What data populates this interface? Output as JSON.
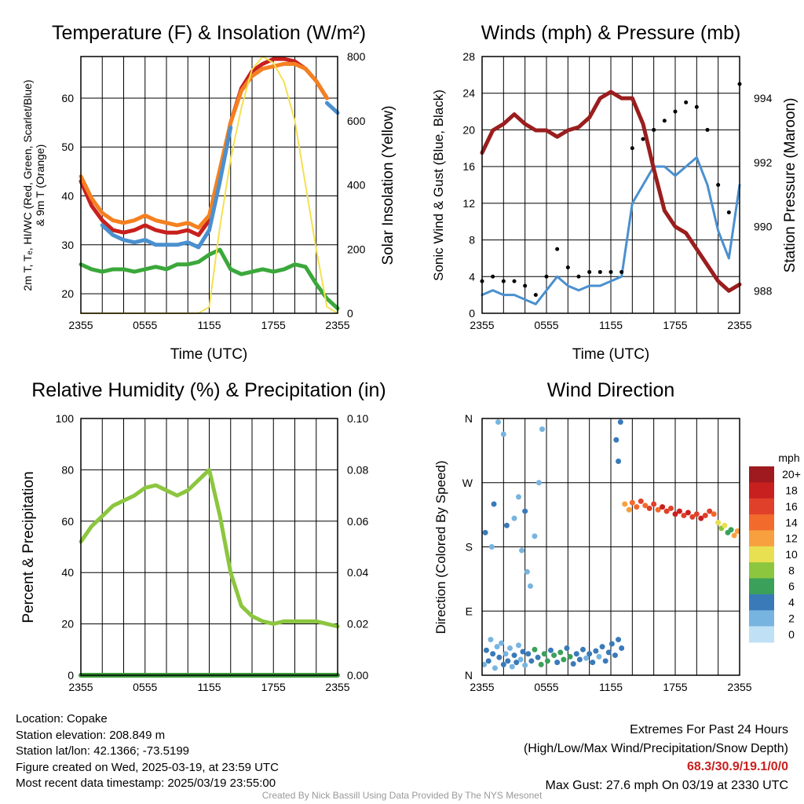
{
  "colors": {
    "red": "#c8201e",
    "orange": "#f58020",
    "blue": "#4a90cf",
    "green": "#3aa83a",
    "yellow": "#f5e050",
    "maroon": "#9a1e1e",
    "black": "#000000",
    "rh": "#8cc63f",
    "precip": "#3a9a3a",
    "credit": "#999999",
    "extremes": "#c8201e"
  },
  "chart_data": [
    {
      "type": "line",
      "title": "Temperature (F) & Insolation (W/m²)",
      "xlabel": "Time (UTC)",
      "ylabel": "2m T, Td, HI/WC (Red, Green, Scarlet/Blue) & 9m T (Orange)",
      "ylabel_line1": "2m T, Tₑ, HI/WC (Red, Green, Scarlet/Blue)",
      "ylabel_line2": "& 9m T (Orange)",
      "y2label": "Solar Insolation (Yellow)",
      "xticks": [
        "2355",
        "0555",
        "1155",
        "1755",
        "2355"
      ],
      "yticks": [
        20,
        30,
        40,
        50,
        60
      ],
      "y2ticks": [
        0,
        200,
        400,
        600,
        800
      ],
      "ylim": [
        16,
        68.5
      ],
      "y2lim": [
        0,
        800
      ],
      "grid": true,
      "x_hours": [
        0,
        1,
        2,
        3,
        4,
        5,
        6,
        7,
        8,
        9,
        10,
        11,
        12,
        13,
        14,
        15,
        16,
        17,
        18,
        19,
        20,
        21,
        22,
        23,
        24
      ],
      "series": [
        {
          "key": "temp_2m",
          "color": "red",
          "values": [
            43,
            38,
            35,
            33,
            32.5,
            33,
            34,
            33,
            32.5,
            32.5,
            33,
            32,
            35,
            45,
            55,
            62,
            65.5,
            67,
            68,
            68,
            67.5,
            66,
            63.5,
            60,
            null
          ]
        },
        {
          "key": "temp_9m",
          "color": "orange",
          "values": [
            44,
            39.5,
            36.5,
            35,
            34.5,
            35,
            36,
            35,
            34.5,
            34,
            34.5,
            33.5,
            36,
            45.5,
            55,
            61.5,
            64.5,
            66,
            66.5,
            67,
            67,
            66,
            63.5,
            60,
            null
          ]
        },
        {
          "key": "windchill",
          "color": "blue",
          "values": [
            42,
            null,
            34,
            32,
            31,
            30.5,
            31,
            30,
            30,
            30,
            30.5,
            29.5,
            33,
            43,
            54,
            null,
            null,
            null,
            null,
            null,
            null,
            null,
            null,
            59,
            57
          ]
        },
        {
          "key": "dewpoint",
          "color": "green",
          "values": [
            26,
            25,
            24.5,
            25,
            25,
            24.5,
            25,
            25.5,
            25,
            26,
            26,
            26.5,
            28,
            29,
            25,
            24,
            24.5,
            25,
            24.5,
            25,
            26,
            25.5,
            22,
            19,
            17
          ]
        },
        {
          "key": "solar",
          "axis": "y2",
          "color": "yellow",
          "values": [
            0,
            0,
            0,
            0,
            0,
            0,
            0,
            0,
            0,
            0,
            0,
            0,
            20,
            270,
            480,
            640,
            760,
            800,
            780,
            720,
            600,
            400,
            200,
            20,
            0
          ]
        }
      ]
    },
    {
      "type": "line",
      "title": "Winds (mph) & Pressure (mb)",
      "xlabel": "Time (UTC)",
      "ylabel": "Sonic Wind & Gust (Blue, Black)",
      "y2label": "Station Pressure (Maroon)",
      "xticks": [
        "2355",
        "0555",
        "1155",
        "1755",
        "2355"
      ],
      "yticks": [
        0,
        4,
        8,
        12,
        16,
        20,
        24,
        28
      ],
      "y2ticks": [
        988,
        990,
        992,
        994
      ],
      "ylim": [
        0,
        28
      ],
      "y2lim": [
        987.3,
        995.3
      ],
      "grid": true,
      "x_hours": [
        0,
        1,
        2,
        3,
        4,
        5,
        6,
        7,
        8,
        9,
        10,
        11,
        12,
        13,
        14,
        15,
        16,
        17,
        18,
        19,
        20,
        21,
        22,
        23,
        24
      ],
      "series": [
        {
          "key": "wind",
          "color": "blue",
          "values": [
            2,
            2.5,
            2,
            2,
            1.5,
            1,
            2.5,
            4,
            3,
            2.5,
            3,
            3,
            3.5,
            4,
            12,
            14,
            16,
            16,
            15,
            16,
            17,
            14,
            9,
            6,
            14
          ]
        },
        {
          "key": "gust",
          "color": "black",
          "values": [
            3.5,
            4,
            3.5,
            3.5,
            3,
            2,
            4,
            7,
            5,
            4,
            4.5,
            4.5,
            4.5,
            4.5,
            18,
            19,
            20,
            21,
            22,
            23,
            22.5,
            20,
            14,
            11,
            25
          ]
        },
        {
          "key": "pressure",
          "axis": "y2",
          "color": "maroon",
          "values": [
            992.3,
            993.0,
            993.2,
            993.5,
            993.2,
            993.0,
            993.0,
            992.8,
            993.0,
            993.1,
            993.4,
            994.0,
            994.2,
            994.0,
            994.0,
            993.2,
            991.8,
            990.5,
            990.0,
            989.8,
            989.3,
            988.8,
            988.3,
            988.0,
            988.2
          ]
        }
      ]
    },
    {
      "type": "line",
      "title": "Relative Humidity (%) & Precipitation (in)",
      "ylabel": "Percent & Precipitation",
      "xticks": [
        "2355",
        "0555",
        "1155",
        "1755",
        "2355"
      ],
      "yticks": [
        0,
        20,
        40,
        60,
        80,
        100
      ],
      "y2ticks": [
        "0.00",
        "0.02",
        "0.04",
        "0.06",
        "0.08",
        "0.10"
      ],
      "ylim": [
        0,
        100
      ],
      "y2lim": [
        0,
        0.1
      ],
      "grid": true,
      "x_hours": [
        0,
        1,
        2,
        3,
        4,
        5,
        6,
        7,
        8,
        9,
        10,
        11,
        12,
        13,
        14,
        15,
        16,
        17,
        18,
        19,
        20,
        21,
        22,
        23,
        24
      ],
      "series": [
        {
          "key": "rh",
          "color": "rh",
          "values": [
            52,
            58,
            62,
            66,
            68,
            70,
            73,
            74,
            72,
            70,
            72,
            76,
            80,
            62,
            40,
            27,
            23,
            21,
            20,
            21,
            21,
            21,
            21,
            20,
            19
          ]
        },
        {
          "key": "precip",
          "axis": "y2",
          "color": "precip",
          "values": [
            0,
            0,
            0,
            0,
            0,
            0,
            0,
            0,
            0,
            0,
            0,
            0,
            0,
            0,
            0,
            0,
            0,
            0,
            0,
            0,
            0,
            0,
            0,
            0,
            0
          ]
        }
      ]
    },
    {
      "type": "scatter",
      "title": "Wind Direction",
      "ylabel": "Direction (Colored By Speed)",
      "xticks": [
        "2355",
        "0555",
        "1155",
        "1755",
        "2355"
      ],
      "yticks": [
        "N",
        "E",
        "S",
        "W",
        "N"
      ],
      "ylim": [
        0,
        360
      ],
      "grid": true,
      "legend_title": "mph",
      "colorbar_labels": [
        "20+",
        "18",
        "16",
        "14",
        "12",
        "10",
        "8",
        "6",
        "4",
        "2",
        "0"
      ],
      "colorbar_colors": [
        "#9e1a1e",
        "#c8201e",
        "#e0402a",
        "#f26a2c",
        "#f8a040",
        "#e8e050",
        "#8cc63f",
        "#3aa05a",
        "#3a7ab8",
        "#78b4e0",
        "#bfe0f5"
      ],
      "points": [
        {
          "h": 0.2,
          "dir": 15,
          "spd": 2
        },
        {
          "h": 0.4,
          "dir": 35,
          "spd": 3
        },
        {
          "h": 0.6,
          "dir": 20,
          "spd": 4
        },
        {
          "h": 0.8,
          "dir": 50,
          "spd": 2
        },
        {
          "h": 1.0,
          "dir": 30,
          "spd": 3
        },
        {
          "h": 1.2,
          "dir": 10,
          "spd": 1
        },
        {
          "h": 1.4,
          "dir": 40,
          "spd": 2
        },
        {
          "h": 1.6,
          "dir": 25,
          "spd": 4
        },
        {
          "h": 1.8,
          "dir": 45,
          "spd": 1
        },
        {
          "h": 2.0,
          "dir": 15,
          "spd": 3
        },
        {
          "h": 2.2,
          "dir": 30,
          "spd": 2
        },
        {
          "h": 2.4,
          "dir": 20,
          "spd": 3
        },
        {
          "h": 2.6,
          "dir": 38,
          "spd": 1
        },
        {
          "h": 2.8,
          "dir": 12,
          "spd": 2
        },
        {
          "h": 3.0,
          "dir": 28,
          "spd": 3
        },
        {
          "h": 3.2,
          "dir": 18,
          "spd": 4
        },
        {
          "h": 3.4,
          "dir": 42,
          "spd": 2
        },
        {
          "h": 3.6,
          "dir": 22,
          "spd": 1
        },
        {
          "h": 3.8,
          "dir": 33,
          "spd": 3
        },
        {
          "h": 4.0,
          "dir": 14,
          "spd": 2
        },
        {
          "h": 4.3,
          "dir": 30,
          "spd": 4
        },
        {
          "h": 4.6,
          "dir": 20,
          "spd": 3
        },
        {
          "h": 4.9,
          "dir": 36,
          "spd": 5
        },
        {
          "h": 5.2,
          "dir": 25,
          "spd": 4
        },
        {
          "h": 5.5,
          "dir": 15,
          "spd": 5
        },
        {
          "h": 5.8,
          "dir": 30,
          "spd": 6
        },
        {
          "h": 6.1,
          "dir": 20,
          "spd": 5
        },
        {
          "h": 6.4,
          "dir": 35,
          "spd": 4
        },
        {
          "h": 6.7,
          "dir": 28,
          "spd": 5
        },
        {
          "h": 7.0,
          "dir": 18,
          "spd": 4
        },
        {
          "h": 7.3,
          "dir": 32,
          "spd": 6
        },
        {
          "h": 7.6,
          "dir": 22,
          "spd": 5
        },
        {
          "h": 7.9,
          "dir": 38,
          "spd": 4
        },
        {
          "h": 8.2,
          "dir": 26,
          "spd": 5
        },
        {
          "h": 8.5,
          "dir": 16,
          "spd": 4
        },
        {
          "h": 8.8,
          "dir": 30,
          "spd": 3
        },
        {
          "h": 9.1,
          "dir": 22,
          "spd": 4
        },
        {
          "h": 9.4,
          "dir": 36,
          "spd": 3
        },
        {
          "h": 9.7,
          "dir": 24,
          "spd": 2
        },
        {
          "h": 10.0,
          "dir": 30,
          "spd": 3
        },
        {
          "h": 10.3,
          "dir": 18,
          "spd": 4
        },
        {
          "h": 10.6,
          "dir": 34,
          "spd": 3
        },
        {
          "h": 10.9,
          "dir": 26,
          "spd": 2
        },
        {
          "h": 11.2,
          "dir": 40,
          "spd": 3
        },
        {
          "h": 11.5,
          "dir": 20,
          "spd": 4
        },
        {
          "h": 11.8,
          "dir": 32,
          "spd": 3
        },
        {
          "h": 12.1,
          "dir": 44,
          "spd": 4
        },
        {
          "h": 12.4,
          "dir": 28,
          "spd": 3
        },
        {
          "h": 12.7,
          "dir": 50,
          "spd": 4
        },
        {
          "h": 13.0,
          "dir": 38,
          "spd": 4
        },
        {
          "h": 0.3,
          "dir": 200,
          "spd": 3
        },
        {
          "h": 1.5,
          "dir": 355,
          "spd": 1
        },
        {
          "h": 2.0,
          "dir": 338,
          "spd": 1
        },
        {
          "h": 2.3,
          "dir": 210,
          "spd": 4
        },
        {
          "h": 3.0,
          "dir": 220,
          "spd": 1
        },
        {
          "h": 3.4,
          "dir": 250,
          "spd": 2
        },
        {
          "h": 4.0,
          "dir": 230,
          "spd": 3
        },
        {
          "h": 4.5,
          "dir": 125,
          "spd": 2
        },
        {
          "h": 4.9,
          "dir": 195,
          "spd": 2
        },
        {
          "h": 5.3,
          "dir": 270,
          "spd": 1
        },
        {
          "h": 5.6,
          "dir": 345,
          "spd": 1
        },
        {
          "h": 0.9,
          "dir": 180,
          "spd": 2
        },
        {
          "h": 1.1,
          "dir": 240,
          "spd": 3
        },
        {
          "h": 3.7,
          "dir": 175,
          "spd": 1
        },
        {
          "h": 4.2,
          "dir": 145,
          "spd": 2
        },
        {
          "h": 12.5,
          "dir": 330,
          "spd": 4
        },
        {
          "h": 12.7,
          "dir": 300,
          "spd": 4
        },
        {
          "h": 12.9,
          "dir": 355,
          "spd": 3
        },
        {
          "h": 13.3,
          "dir": 240,
          "spd": 12
        },
        {
          "h": 13.7,
          "dir": 232,
          "spd": 11
        },
        {
          "h": 14.0,
          "dir": 242,
          "spd": 14
        },
        {
          "h": 14.4,
          "dir": 236,
          "spd": 13
        },
        {
          "h": 14.8,
          "dir": 244,
          "spd": 15
        },
        {
          "h": 15.2,
          "dir": 238,
          "spd": 14
        },
        {
          "h": 15.6,
          "dir": 234,
          "spd": 16
        },
        {
          "h": 16.0,
          "dir": 240,
          "spd": 15
        },
        {
          "h": 16.4,
          "dir": 232,
          "spd": 14
        },
        {
          "h": 16.8,
          "dir": 236,
          "spd": 17
        },
        {
          "h": 17.2,
          "dir": 230,
          "spd": 16
        },
        {
          "h": 17.6,
          "dir": 234,
          "spd": 15
        },
        {
          "h": 18.0,
          "dir": 226,
          "spd": 17
        },
        {
          "h": 18.4,
          "dir": 230,
          "spd": 18
        },
        {
          "h": 18.8,
          "dir": 224,
          "spd": 16
        },
        {
          "h": 19.2,
          "dir": 228,
          "spd": 17
        },
        {
          "h": 19.6,
          "dir": 222,
          "spd": 16
        },
        {
          "h": 20.0,
          "dir": 226,
          "spd": 15
        },
        {
          "h": 20.4,
          "dir": 220,
          "spd": 17
        },
        {
          "h": 20.8,
          "dir": 224,
          "spd": 16
        },
        {
          "h": 21.2,
          "dir": 230,
          "spd": 15
        },
        {
          "h": 21.6,
          "dir": 226,
          "spd": 14
        },
        {
          "h": 22.0,
          "dir": 214,
          "spd": 10
        },
        {
          "h": 22.3,
          "dir": 206,
          "spd": 7
        },
        {
          "h": 22.6,
          "dir": 210,
          "spd": 9
        },
        {
          "h": 22.9,
          "dir": 200,
          "spd": 6
        },
        {
          "h": 23.2,
          "dir": 204,
          "spd": 5
        },
        {
          "h": 23.5,
          "dir": 196,
          "spd": 11
        },
        {
          "h": 23.8,
          "dir": 202,
          "spd": 12
        }
      ]
    }
  ],
  "info": {
    "location": "Location: Copake",
    "elevation": "Station elevation: 208.849 m",
    "latlon": "Station lat/lon: 42.1366; -73.5199",
    "created": "Figure created on Wed, 2025-03-19, at 23:59 UTC",
    "recent": "Most recent data timestamp: 2025/03/19 23:55:00"
  },
  "extremes": {
    "title": "Extremes For Past 24 Hours",
    "subtitle": "(High/Low/Max Wind/Precipitation/Snow Depth)",
    "values": "68.3/30.9/19.1/0/0",
    "gust": "Max Gust: 27.6 mph On 03/19 at 2330 UTC"
  },
  "credit": "Created By Nick Bassill Using Data Provided By The NYS Mesonet"
}
